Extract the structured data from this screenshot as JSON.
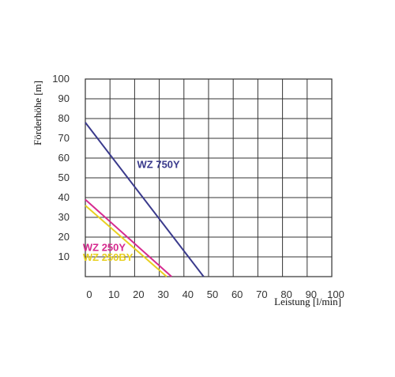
{
  "chart_data": {
    "type": "line",
    "xlabel": "Leistung [l/min]",
    "ylabel": "Förderhöhe [m]",
    "xlim": [
      0,
      100
    ],
    "ylim": [
      0,
      100
    ],
    "x_ticks": [
      0,
      10,
      20,
      30,
      40,
      50,
      60,
      70,
      80,
      90,
      100
    ],
    "y_ticks": [
      10,
      20,
      30,
      40,
      50,
      60,
      70,
      80,
      90,
      100
    ],
    "grid": true,
    "series": [
      {
        "name": "WZ 750Y",
        "color": "#3a3a8c",
        "x": [
          0,
          48
        ],
        "y": [
          78,
          0
        ],
        "label_at": [
          21,
          55
        ]
      },
      {
        "name": "WZ 250Y",
        "color": "#d62a8f",
        "x": [
          0,
          35
        ],
        "y": [
          39,
          0
        ],
        "label_at": [
          -1,
          13
        ]
      },
      {
        "name": "WZ 250BY",
        "color": "#e8d020",
        "x": [
          0,
          33
        ],
        "y": [
          36,
          0
        ],
        "label_at": [
          -1,
          8
        ]
      }
    ]
  }
}
